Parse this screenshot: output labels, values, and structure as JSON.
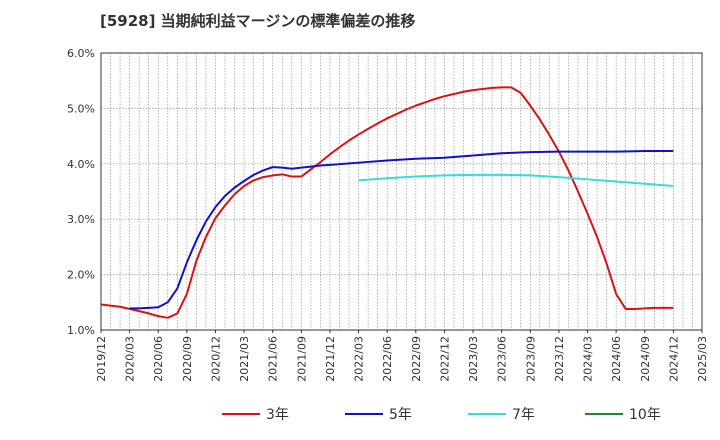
{
  "title": "[5928]  当期純利益マージンの標準偏差の推移",
  "chart_data": {
    "type": "line",
    "title": "[5928]  当期純利益マージンの標準偏差の推移",
    "xlabel": "",
    "ylabel": "",
    "ylim": [
      1.0,
      6.0
    ],
    "y_ticks": [
      1.0,
      2.0,
      3.0,
      4.0,
      5.0,
      6.0
    ],
    "y_tick_labels": [
      "1.0%",
      "2.0%",
      "3.0%",
      "4.0%",
      "5.0%",
      "6.0%"
    ],
    "x_range": [
      "2019-12",
      "2025-03"
    ],
    "x_tick_labels": [
      "2019/12",
      "2020/03",
      "2020/06",
      "2020/09",
      "2020/12",
      "2021/03",
      "2021/06",
      "2021/09",
      "2021/12",
      "2022/03",
      "2022/06",
      "2022/09",
      "2022/12",
      "2023/03",
      "2023/06",
      "2023/09",
      "2023/12",
      "2024/03",
      "2024/06",
      "2024/09",
      "2024/12",
      "2025/03"
    ],
    "grid": true,
    "legend_position": "bottom",
    "series": [
      {
        "name": "3年",
        "color": "#dd1111",
        "points": [
          [
            "2019-12",
            1.46
          ],
          [
            "2020-01",
            1.44
          ],
          [
            "2020-02",
            1.42
          ],
          [
            "2020-03",
            1.38
          ],
          [
            "2020-04",
            1.34
          ],
          [
            "2020-05",
            1.3
          ],
          [
            "2020-06",
            1.25
          ],
          [
            "2020-07",
            1.22
          ],
          [
            "2020-08",
            1.3
          ],
          [
            "2020-09",
            1.65
          ],
          [
            "2020-10",
            2.25
          ],
          [
            "2020-11",
            2.68
          ],
          [
            "2020-12",
            3.02
          ],
          [
            "2021-01",
            3.25
          ],
          [
            "2021-02",
            3.45
          ],
          [
            "2021-03",
            3.6
          ],
          [
            "2021-04",
            3.7
          ],
          [
            "2021-05",
            3.76
          ],
          [
            "2021-06",
            3.79
          ],
          [
            "2021-07",
            3.81
          ],
          [
            "2021-08",
            3.77
          ],
          [
            "2021-09",
            3.77
          ],
          [
            "2021-10",
            3.9
          ],
          [
            "2021-11",
            4.03
          ],
          [
            "2021-12",
            4.17
          ],
          [
            "2022-01",
            4.3
          ],
          [
            "2022-02",
            4.42
          ],
          [
            "2022-03",
            4.53
          ],
          [
            "2022-04",
            4.63
          ],
          [
            "2022-05",
            4.73
          ],
          [
            "2022-06",
            4.82
          ],
          [
            "2022-07",
            4.9
          ],
          [
            "2022-08",
            4.98
          ],
          [
            "2022-09",
            5.05
          ],
          [
            "2022-10",
            5.11
          ],
          [
            "2022-11",
            5.17
          ],
          [
            "2022-12",
            5.22
          ],
          [
            "2023-01",
            5.26
          ],
          [
            "2023-02",
            5.3
          ],
          [
            "2023-03",
            5.33
          ],
          [
            "2023-04",
            5.35
          ],
          [
            "2023-05",
            5.37
          ],
          [
            "2023-06",
            5.38
          ],
          [
            "2023-07",
            5.38
          ],
          [
            "2023-08",
            5.28
          ],
          [
            "2023-09",
            5.05
          ],
          [
            "2023-10",
            4.8
          ],
          [
            "2023-11",
            4.52
          ],
          [
            "2023-12",
            4.22
          ],
          [
            "2024-01",
            3.88
          ],
          [
            "2024-02",
            3.5
          ],
          [
            "2024-03",
            3.1
          ],
          [
            "2024-04",
            2.68
          ],
          [
            "2024-05",
            2.2
          ],
          [
            "2024-06",
            1.65
          ],
          [
            "2024-07",
            1.38
          ],
          [
            "2024-08",
            1.38
          ],
          [
            "2024-09",
            1.39
          ],
          [
            "2024-10",
            1.4
          ],
          [
            "2024-11",
            1.4
          ],
          [
            "2024-12",
            1.4
          ]
        ]
      },
      {
        "name": "5年",
        "color": "#1111cc",
        "points": [
          [
            "2020-03",
            1.39
          ],
          [
            "2020-04",
            1.39
          ],
          [
            "2020-05",
            1.4
          ],
          [
            "2020-06",
            1.41
          ],
          [
            "2020-07",
            1.5
          ],
          [
            "2020-08",
            1.75
          ],
          [
            "2020-09",
            2.22
          ],
          [
            "2020-10",
            2.62
          ],
          [
            "2020-11",
            2.96
          ],
          [
            "2020-12",
            3.22
          ],
          [
            "2021-01",
            3.42
          ],
          [
            "2021-02",
            3.57
          ],
          [
            "2021-03",
            3.69
          ],
          [
            "2021-04",
            3.8
          ],
          [
            "2021-05",
            3.88
          ],
          [
            "2021-06",
            3.94
          ],
          [
            "2021-07",
            3.93
          ],
          [
            "2021-08",
            3.91
          ],
          [
            "2021-09",
            3.93
          ],
          [
            "2021-10",
            3.95
          ],
          [
            "2021-11",
            3.97
          ],
          [
            "2021-12",
            3.98
          ],
          [
            "2022-03",
            4.02
          ],
          [
            "2022-06",
            4.06
          ],
          [
            "2022-09",
            4.09
          ],
          [
            "2022-12",
            4.11
          ],
          [
            "2023-03",
            4.15
          ],
          [
            "2023-06",
            4.19
          ],
          [
            "2023-09",
            4.21
          ],
          [
            "2023-12",
            4.22
          ],
          [
            "2024-03",
            4.22
          ],
          [
            "2024-06",
            4.22
          ],
          [
            "2024-09",
            4.23
          ],
          [
            "2024-12",
            4.23
          ]
        ]
      },
      {
        "name": "7年",
        "color": "#33dddd",
        "points": [
          [
            "2022-03",
            3.7
          ],
          [
            "2022-06",
            3.74
          ],
          [
            "2022-09",
            3.77
          ],
          [
            "2022-12",
            3.79
          ],
          [
            "2023-03",
            3.8
          ],
          [
            "2023-06",
            3.8
          ],
          [
            "2023-09",
            3.79
          ],
          [
            "2023-12",
            3.76
          ],
          [
            "2024-03",
            3.72
          ],
          [
            "2024-06",
            3.68
          ],
          [
            "2024-09",
            3.64
          ],
          [
            "2024-12",
            3.6
          ]
        ]
      },
      {
        "name": "10年",
        "color": "#228822",
        "points": []
      }
    ]
  }
}
